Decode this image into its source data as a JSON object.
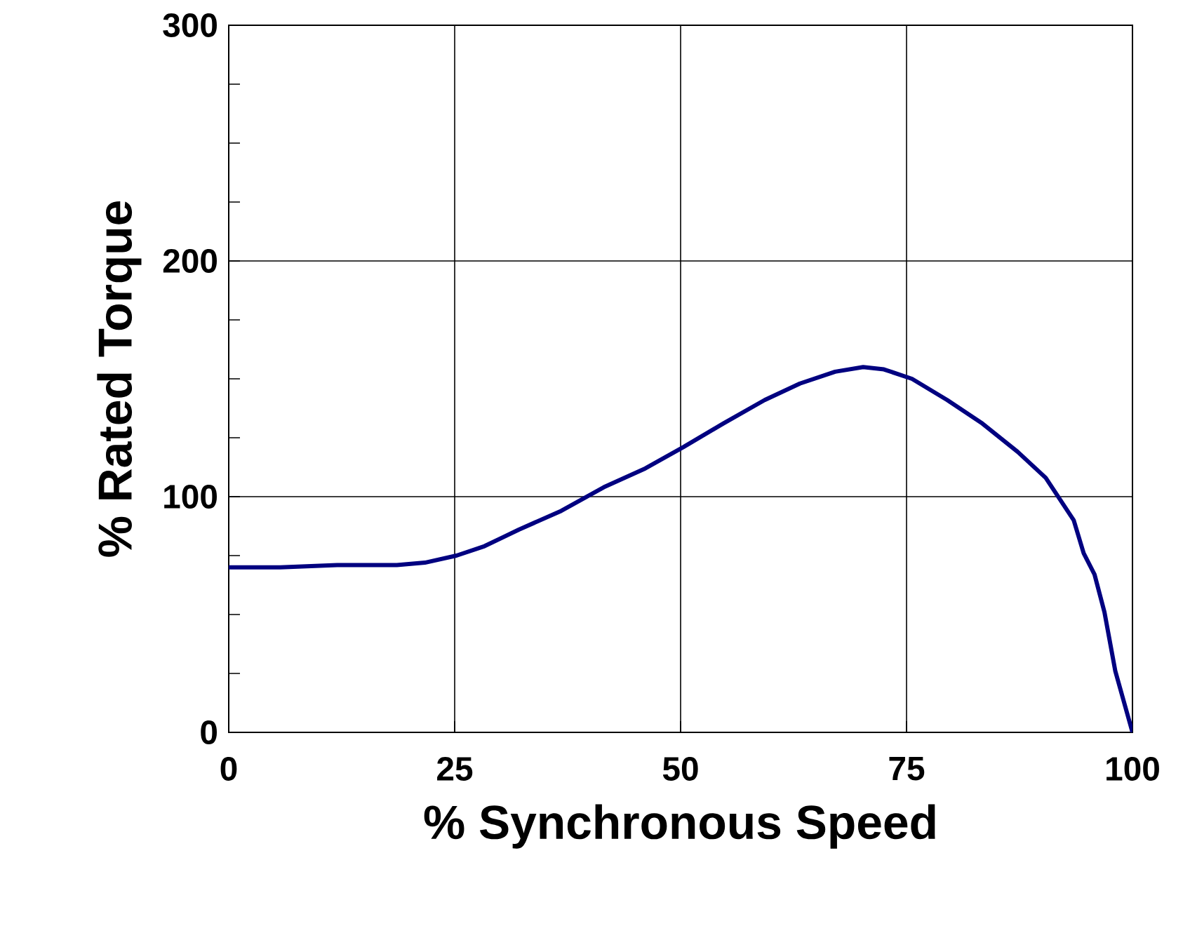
{
  "chart_data": {
    "type": "line",
    "xlabel": "% Synchronous Speed",
    "ylabel": "% Rated Torque",
    "x": [
      0,
      5.7,
      12,
      18.6,
      21.7,
      25.2,
      28.3,
      32.1,
      36.8,
      41.5,
      46.1,
      50.3,
      54.7,
      59.3,
      63.2,
      67.1,
      70.2,
      72.5,
      75.6,
      79.5,
      83.4,
      87.3,
      90.4,
      93.5,
      94.6,
      95.8,
      96.9,
      98.1,
      100
    ],
    "series": [
      {
        "color": "#000080",
        "values": [
          70,
          70,
          71,
          71,
          72,
          75,
          79,
          86,
          94,
          104,
          112,
          121,
          131,
          141,
          148,
          153,
          155,
          154,
          150,
          141,
          131,
          119,
          108,
          90,
          76,
          67,
          51,
          26,
          0
        ]
      }
    ],
    "xlim": [
      0,
      100
    ],
    "ylim": [
      0,
      300
    ],
    "xticks": [
      0,
      25,
      50,
      75,
      100
    ],
    "yticks": [
      0,
      {
        "value": 25,
        "label": null
      },
      {
        "value": 50,
        "label": null
      },
      {
        "value": 75,
        "label": null
      },
      100,
      {
        "value": 125,
        "label": null
      },
      {
        "value": 150,
        "label": null
      },
      {
        "value": 175,
        "label": null
      },
      200,
      {
        "value": 225,
        "label": null
      },
      {
        "value": 250,
        "label": null
      },
      {
        "value": 275,
        "label": null
      },
      300
    ],
    "grid": true,
    "marker": "none",
    "line_style": "solid"
  }
}
